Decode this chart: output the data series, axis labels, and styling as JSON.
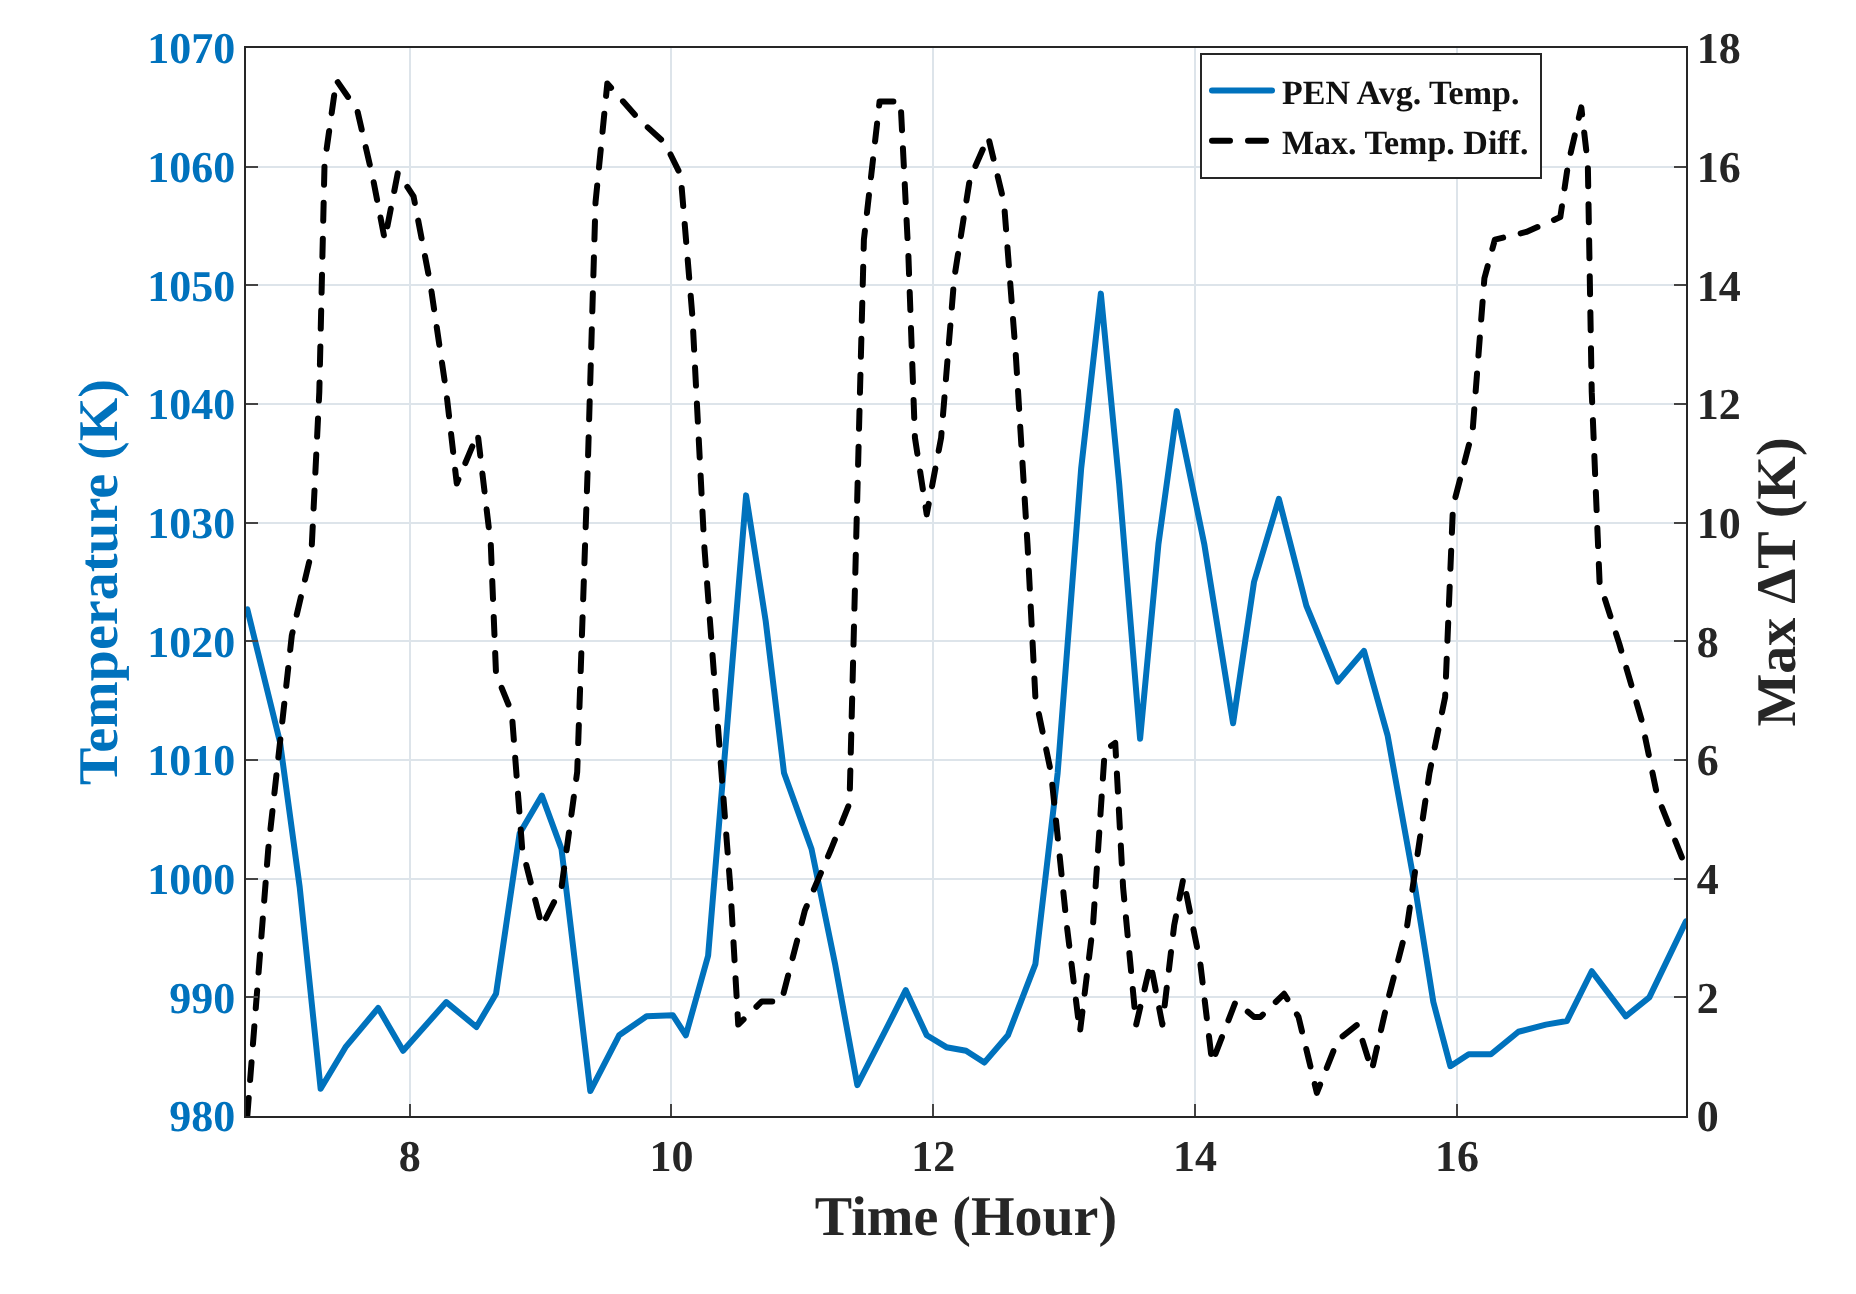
{
  "chart_data": {
    "type": "line",
    "xlabel": "Time (Hour)",
    "ylabel": "Temperature (K)",
    "y2label": "Max ΔT (K)",
    "xlim": [
      6.75,
      17.75
    ],
    "xticks": [
      8,
      10,
      12,
      14,
      16
    ],
    "ylim": [
      980,
      1070
    ],
    "yticks": [
      980,
      990,
      1000,
      1010,
      1020,
      1030,
      1040,
      1050,
      1060,
      1070
    ],
    "y2lim": [
      0,
      18
    ],
    "y2ticks": [
      0,
      2,
      4,
      6,
      8,
      10,
      12,
      14,
      16,
      18
    ],
    "grid": true,
    "legend": "top right",
    "series": [
      {
        "name": "PEN Avg. Temp.",
        "color": "#0072bd",
        "line_style": "solid",
        "x": [
          6.76,
          7.01,
          7.16,
          7.32,
          7.51,
          7.76,
          7.95,
          8.28,
          8.51,
          8.66,
          8.84,
          9.01,
          9.16,
          9.38,
          9.6,
          9.81,
          10.01,
          10.11,
          10.28,
          10.42,
          10.57,
          10.72,
          10.86,
          11.07,
          11.25,
          11.42,
          11.63,
          11.79,
          11.95,
          12.1,
          12.25,
          12.39,
          12.57,
          12.78,
          12.95,
          13.13,
          13.28,
          13.42,
          13.58,
          13.72,
          13.86,
          14.07,
          14.29,
          14.45,
          14.64,
          14.85,
          15.09,
          15.29,
          15.47,
          15.68,
          15.82,
          15.95,
          16.09,
          16.26,
          16.47,
          16.68,
          16.84,
          17.03,
          17.29,
          17.47,
          17.75
        ],
        "values": [
          1022.7,
          1011.5,
          999.3,
          982.3,
          985.8,
          989.1,
          985.5,
          989.6,
          987.5,
          990.3,
          1003.8,
          1007,
          1002.5,
          982.1,
          986.8,
          988.4,
          988.5,
          986.8,
          993.5,
          1012.1,
          1032.3,
          1021.7,
          1008.9,
          1002.5,
          992.8,
          982.6,
          987.1,
          990.6,
          986.8,
          985.8,
          985.5,
          984.5,
          986.8,
          992.8,
          1008.9,
          1034.6,
          1049.3,
          1033.3,
          1011.8,
          1028.2,
          1039.4,
          1028.2,
          1013.1,
          1025,
          1032,
          1023,
          1016.6,
          1019.2,
          1012.1,
          999.3,
          989.6,
          984.2,
          985.2,
          985.2,
          987.1,
          987.7,
          988,
          992.2,
          988.4,
          990,
          996.4
        ]
      },
      {
        "name": "Max. Temp. Diff.",
        "color": "#000000",
        "line_style": "dashed",
        "axis": "y2",
        "x": [
          6.76,
          6.92,
          7.1,
          7.25,
          7.31,
          7.35,
          7.44,
          7.6,
          7.72,
          7.81,
          7.91,
          8.03,
          8.16,
          8.28,
          8.36,
          8.52,
          8.62,
          8.66,
          8.78,
          8.86,
          9.01,
          9.16,
          9.28,
          9.36,
          9.42,
          9.51,
          9.75,
          9.95,
          10.07,
          10.16,
          10.25,
          10.36,
          10.45,
          10.51,
          10.69,
          10.84,
          11.02,
          11.22,
          11.36,
          11.41,
          11.47,
          11.59,
          11.75,
          11.81,
          11.86,
          11.95,
          12.06,
          12.16,
          12.28,
          12.42,
          12.54,
          12.63,
          12.72,
          12.78,
          12.9,
          13.02,
          13.12,
          13.22,
          13.31,
          13.39,
          13.45,
          13.55,
          13.66,
          13.75,
          13.84,
          13.91,
          14.04,
          14.13,
          14.31,
          14.45,
          14.5,
          14.68,
          14.79,
          14.93,
          15.09,
          15.24,
          15.35,
          15.47,
          15.62,
          15.79,
          15.91,
          15.97,
          16.12,
          16.21,
          16.29,
          16.53,
          16.79,
          16.85,
          16.95,
          17.0,
          17.03,
          17.09,
          17.24,
          17.41,
          17.53,
          17.74
        ],
        "values": [
          0,
          4.5,
          8.1,
          9.5,
          12.2,
          16.05,
          17.46,
          16.95,
          15.8,
          14.77,
          15.9,
          15.5,
          14,
          12.2,
          10.66,
          11.5,
          9.63,
          7.45,
          6.8,
          4.5,
          3.2,
          3.85,
          5.8,
          10.9,
          15.4,
          17.4,
          16.8,
          16.4,
          15.86,
          13.48,
          9.63,
          6.42,
          3.85,
          1.54,
          1.93,
          1.93,
          3.47,
          4.5,
          5.27,
          9.63,
          14.77,
          17.1,
          17.1,
          14.5,
          11.43,
          10.14,
          11.43,
          14.12,
          15.8,
          16.5,
          15.4,
          12.84,
          9.63,
          7.06,
          5.78,
          3.21,
          1.41,
          3.21,
          6.16,
          6.29,
          3.85,
          1.54,
          2.57,
          1.54,
          3.21,
          4,
          2.57,
          0.9,
          1.93,
          1.67,
          1.67,
          2.06,
          1.67,
          0.39,
          1.28,
          1.54,
          0.77,
          1.93,
          3.21,
          5.78,
          7.06,
          10.27,
          11.55,
          14.12,
          14.77,
          14.9,
          15.15,
          16.05,
          17.0,
          16.05,
          12.2,
          8.99,
          7.96,
          6.68,
          5.4,
          4.24
        ]
      }
    ]
  }
}
